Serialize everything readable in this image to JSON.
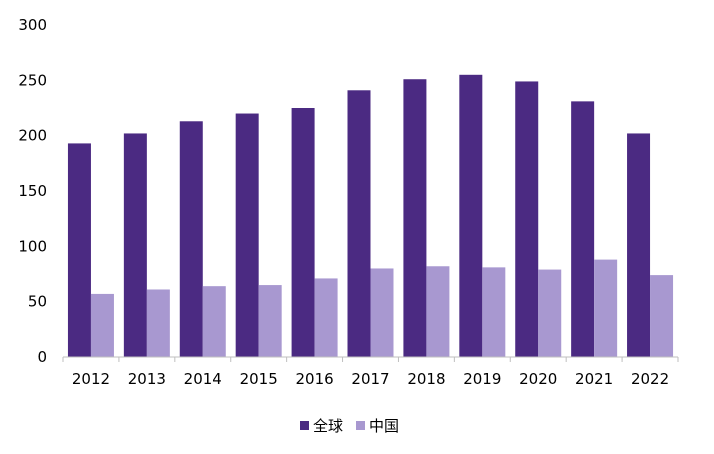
{
  "chart_data": {
    "type": "bar",
    "categories": [
      "2012",
      "2013",
      "2014",
      "2015",
      "2016",
      "2017",
      "2018",
      "2019",
      "2020",
      "2021",
      "2022"
    ],
    "series": [
      {
        "name": "全球",
        "color": "#4b2a82",
        "values": [
          193,
          202,
          213,
          220,
          225,
          241,
          251,
          255,
          249,
          231,
          202
        ]
      },
      {
        "name": "中国",
        "color": "#a898d0",
        "values": [
          57,
          61,
          64,
          65,
          71,
          80,
          82,
          81,
          79,
          88,
          74
        ]
      }
    ],
    "title": "",
    "xlabel": "",
    "ylabel": "",
    "ylim": [
      0,
      300
    ],
    "yticks": [
      "0",
      "50",
      "100",
      "150",
      "200",
      "250",
      "300"
    ],
    "grid": false,
    "legend_position": "bottom-center",
    "axis_color": "#bfbfbf"
  }
}
